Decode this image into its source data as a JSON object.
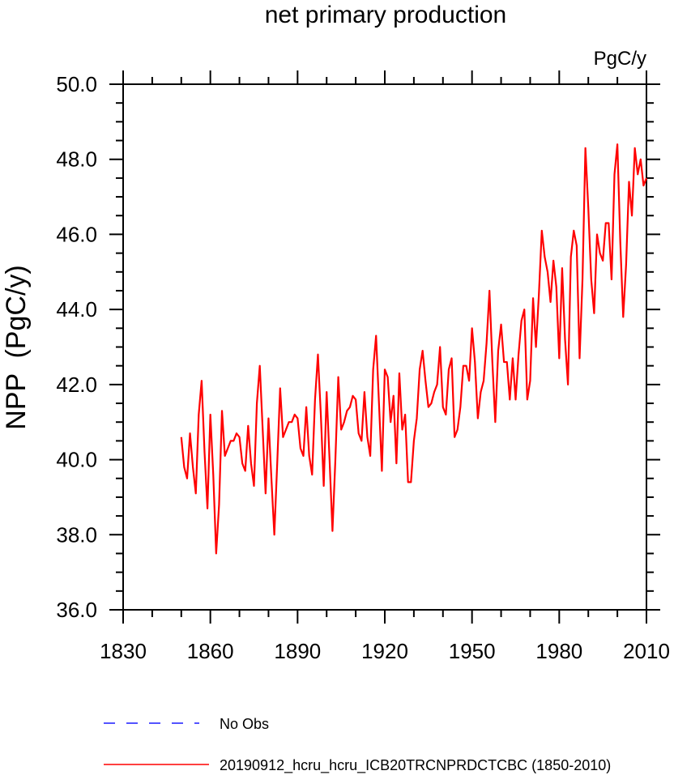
{
  "chart_data": {
    "type": "line",
    "title": "net primary production",
    "units_label": "PgC/y",
    "xlabel": "",
    "ylabel": "NPP  (PgC/y)",
    "xlim": [
      1830,
      2010
    ],
    "ylim": [
      36.0,
      50.0
    ],
    "x_major_ticks": [
      1830,
      1860,
      1890,
      1920,
      1950,
      1980,
      2010
    ],
    "y_major_ticks": [
      36.0,
      38.0,
      40.0,
      42.0,
      44.0,
      46.0,
      48.0,
      50.0
    ],
    "y_tick_labels": [
      "36.0",
      "38.0",
      "40.0",
      "42.0",
      "44.0",
      "46.0",
      "48.0",
      "50.0"
    ],
    "x_tick_labels": [
      "1830",
      "1860",
      "1890",
      "1920",
      "1950",
      "1980",
      "2010"
    ],
    "grid": false,
    "series": [
      {
        "name": "No Obs",
        "color": "#1a1aff",
        "style": "dashed",
        "x": [],
        "values": []
      },
      {
        "name": "20190912_hcru_hcru_ICB20TRCNPRDCTCBC (1850-2010)",
        "color": "#ff0000",
        "style": "solid",
        "x": [
          1850,
          1851,
          1852,
          1853,
          1854,
          1855,
          1856,
          1857,
          1858,
          1859,
          1860,
          1861,
          1862,
          1863,
          1864,
          1865,
          1866,
          1867,
          1868,
          1869,
          1870,
          1871,
          1872,
          1873,
          1874,
          1875,
          1876,
          1877,
          1878,
          1879,
          1880,
          1881,
          1882,
          1883,
          1884,
          1885,
          1886,
          1887,
          1888,
          1889,
          1890,
          1891,
          1892,
          1893,
          1894,
          1895,
          1896,
          1897,
          1898,
          1899,
          1900,
          1901,
          1902,
          1903,
          1904,
          1905,
          1906,
          1907,
          1908,
          1909,
          1910,
          1911,
          1912,
          1913,
          1914,
          1915,
          1916,
          1917,
          1918,
          1919,
          1920,
          1921,
          1922,
          1923,
          1924,
          1925,
          1926,
          1927,
          1928,
          1929,
          1930,
          1931,
          1932,
          1933,
          1934,
          1935,
          1936,
          1937,
          1938,
          1939,
          1940,
          1941,
          1942,
          1943,
          1944,
          1945,
          1946,
          1947,
          1948,
          1949,
          1950,
          1951,
          1952,
          1953,
          1954,
          1955,
          1956,
          1957,
          1958,
          1959,
          1960,
          1961,
          1962,
          1963,
          1964,
          1965,
          1966,
          1967,
          1968,
          1969,
          1970,
          1971,
          1972,
          1973,
          1974,
          1975,
          1976,
          1977,
          1978,
          1979,
          1980,
          1981,
          1982,
          1983,
          1984,
          1985,
          1986,
          1987,
          1988,
          1989,
          1990,
          1991,
          1992,
          1993,
          1994,
          1995,
          1996,
          1997,
          1998,
          1999,
          2000,
          2001,
          2002,
          2003,
          2004,
          2005,
          2006,
          2007,
          2008,
          2009,
          2010
        ],
        "values": [
          40.6,
          39.8,
          39.5,
          40.7,
          39.8,
          39.1,
          41.2,
          42.1,
          40.2,
          38.7,
          41.2,
          39.6,
          37.5,
          38.8,
          41.3,
          40.1,
          40.3,
          40.5,
          40.5,
          40.7,
          40.6,
          39.9,
          39.7,
          40.9,
          39.9,
          39.3,
          41.5,
          42.5,
          40.8,
          39.1,
          41.1,
          39.5,
          38.0,
          39.9,
          41.9,
          40.6,
          40.8,
          41.0,
          41.0,
          41.2,
          41.1,
          40.3,
          40.1,
          41.4,
          40.1,
          39.6,
          41.6,
          42.8,
          41.2,
          39.3,
          41.8,
          40.0,
          38.1,
          40.0,
          42.2,
          40.8,
          41.0,
          41.3,
          41.4,
          41.7,
          41.6,
          40.7,
          40.5,
          41.8,
          40.6,
          40.1,
          42.4,
          43.3,
          41.5,
          39.7,
          42.4,
          42.2,
          41.0,
          41.7,
          39.9,
          42.3,
          40.8,
          41.2,
          39.4,
          39.4,
          40.5,
          41.1,
          42.4,
          42.9,
          42.1,
          41.4,
          41.5,
          41.8,
          42.0,
          43.0,
          41.4,
          41.2,
          42.4,
          42.7,
          40.6,
          40.8,
          41.4,
          42.5,
          42.5,
          42.1,
          43.5,
          42.6,
          41.1,
          41.8,
          42.1,
          43.1,
          44.5,
          42.6,
          41.0,
          42.9,
          43.6,
          42.6,
          42.6,
          41.6,
          42.7,
          41.6,
          42.8,
          43.7,
          44.0,
          41.6,
          42.1,
          44.3,
          43.0,
          44.4,
          46.1,
          45.4,
          45.0,
          44.2,
          45.3,
          44.6,
          42.7,
          45.1,
          43.2,
          42.0,
          45.4,
          46.1,
          45.7,
          42.7,
          44.8,
          48.3,
          46.7,
          44.8,
          43.9,
          46.0,
          45.5,
          45.3,
          46.3,
          46.3,
          44.8,
          47.6,
          48.4,
          45.8,
          43.8,
          45.2,
          47.4,
          46.5,
          48.3,
          47.6,
          48.0,
          47.3,
          47.5
        ]
      }
    ]
  }
}
